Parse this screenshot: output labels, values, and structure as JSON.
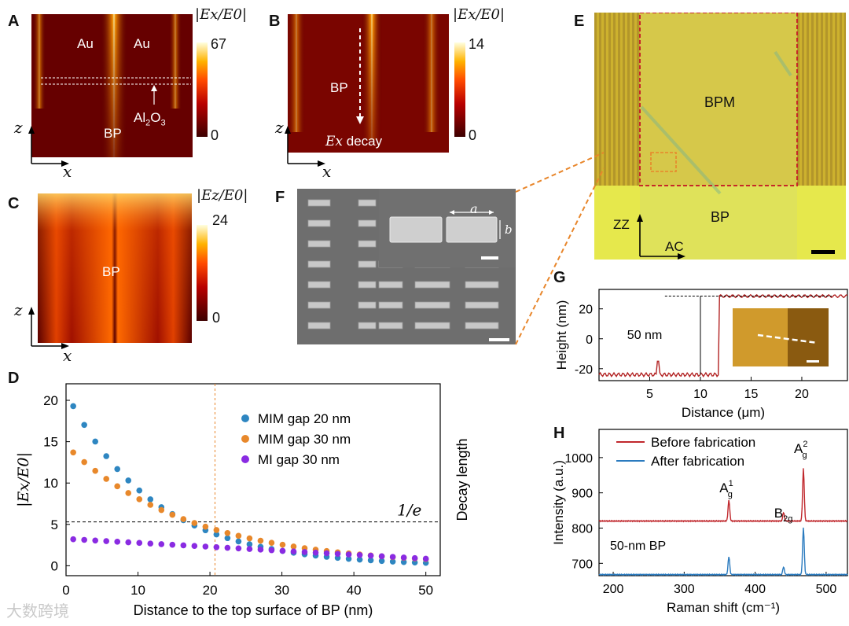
{
  "panels": {
    "A": {
      "letter": "A",
      "labels": {
        "au_left": "Au",
        "au_right": "Au",
        "bp": "BP",
        "al2o3_main": "Al",
        "al2o3_sub": "2",
        "al2o3_tail": "O",
        "al2o3_sub2": "3"
      },
      "axis": {
        "z": "z",
        "x": "x"
      },
      "colorbar": {
        "title": "|Ex/E0|",
        "max": "67",
        "min": "0"
      }
    },
    "B": {
      "letter": "B",
      "labels": {
        "bp": "BP",
        "decay": "decay",
        "ex": "Ex"
      },
      "axis": {
        "z": "z",
        "x": "x"
      },
      "colorbar": {
        "title": "|Ex/E0|",
        "max": "14",
        "min": "0"
      }
    },
    "C": {
      "letter": "C",
      "labels": {
        "bp": "BP"
      },
      "axis": {
        "z": "z",
        "x": "x"
      },
      "colorbar": {
        "title": "|Ez/E0|",
        "max": "24",
        "min": "0"
      }
    },
    "E": {
      "letter": "E",
      "labels": {
        "bpm": "BPM",
        "bp": "BP",
        "zz": "ZZ",
        "ac": "AC"
      }
    },
    "F": {
      "letter": "F",
      "labels": {
        "a": "a",
        "b": "b"
      }
    },
    "D": {
      "letter": "D"
    },
    "G": {
      "letter": "G",
      "annotation": "50 nm"
    },
    "H": {
      "letter": "H",
      "annotation": "50-nm BP"
    }
  },
  "chart_data": [
    {
      "id": "D",
      "type": "scatter",
      "xlabel": "Distance to the top surface of BP (nm)",
      "ylabel": "|Ex/E0|",
      "right_label": "Decay length",
      "xlim": [
        0,
        52
      ],
      "ylim": [
        -1.2,
        22
      ],
      "xticks": [
        0,
        10,
        20,
        30,
        40,
        50
      ],
      "yticks": [
        0,
        5,
        10,
        15,
        20
      ],
      "threshold_label": "1/e",
      "threshold_y": 5.3,
      "decay_line_x": 20.7,
      "series": [
        {
          "name": "MIM gap 20 nm",
          "color": "#2e86c1",
          "x0": 1,
          "x1": 50,
          "n": 33,
          "start": 19.3,
          "end": 0.35,
          "shape": "exp"
        },
        {
          "name": "MIM gap 30 nm",
          "color": "#e8882b",
          "x0": 1,
          "x1": 50,
          "n": 33,
          "start": 13.7,
          "end": 0.8,
          "shape": "exp"
        },
        {
          "name": "MI gap 30 nm",
          "color": "#8a2be2",
          "x0": 1,
          "x1": 50,
          "n": 33,
          "start": 3.2,
          "end": 0.85,
          "shape": "lin"
        }
      ]
    },
    {
      "id": "G",
      "type": "line",
      "xlabel": "Distance (μm)",
      "ylabel": "Height (nm)",
      "xlim": [
        0,
        24.5
      ],
      "ylim": [
        -28,
        33
      ],
      "xticks": [
        5,
        10,
        15,
        20
      ],
      "yticks": [
        -20,
        0,
        20
      ],
      "step_x": 11.8,
      "low": -24,
      "high": 28.5,
      "color": "#b22222"
    },
    {
      "id": "H",
      "type": "line",
      "xlabel": "Raman shift (cm⁻¹)",
      "ylabel": "Intensity (a.u.)",
      "xlim": [
        180,
        530
      ],
      "ylim": [
        665,
        1080
      ],
      "xticks": [
        200,
        300,
        400,
        500
      ],
      "yticks": [
        700,
        800,
        900,
        1000
      ],
      "series": [
        {
          "name": "Before fabrication",
          "color": "#c0282d",
          "baseline": 820,
          "peaks": [
            [
              363,
              60
            ],
            [
              440,
              25
            ],
            [
              468,
              150
            ]
          ]
        },
        {
          "name": "After fabrication",
          "color": "#2b7bbf",
          "baseline": 668,
          "peaks": [
            [
              363,
              52
            ],
            [
              440,
              22
            ],
            [
              468,
              135
            ]
          ]
        }
      ],
      "peak_labels": [
        {
          "text": "A",
          "sup": "1",
          "sub": "g",
          "x": 363
        },
        {
          "text": "B",
          "sub": "2g",
          "x": 440
        },
        {
          "text": "A",
          "sup": "2",
          "sub": "g",
          "x": 468
        }
      ]
    }
  ],
  "watermark": "大数跨境"
}
